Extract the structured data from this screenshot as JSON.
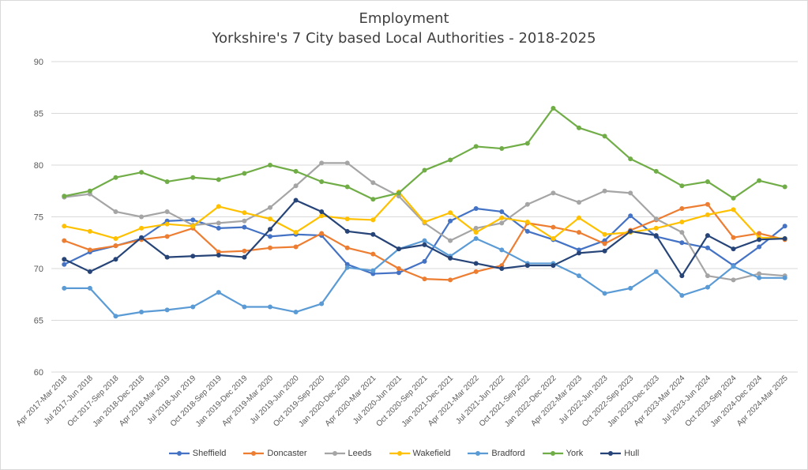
{
  "chart_data": {
    "type": "line",
    "title": "Employment",
    "subtitle": "Yorkshire's 7 City based Local Authorities - 2018-2025",
    "xlabel": "",
    "ylabel": "",
    "ylim": [
      60,
      90
    ],
    "yticks": [
      "60",
      "65",
      "70",
      "75",
      "80",
      "85",
      "90"
    ],
    "grid": true,
    "legend": "bottom",
    "categories": [
      "Apr 2017-Mar 2018",
      "Jul 2017-Jun 2018",
      "Oct 2017-Sep 2018",
      "Jan 2018-Dec 2018",
      "Apr 2018-Mar 2019",
      "Jul 2018-Jun 2019",
      "Oct 2018-Sep 2019",
      "Jan 2019-Dec 2019",
      "Apr 2019-Mar 2020",
      "Jul 2019-Jun 2020",
      "Oct 2019-Sep 2020",
      "Jan 2020-Dec 2020",
      "Apr 2020-Mar 2021",
      "Jul 2020-Jun 2021",
      "Oct 2020-Sep 2021",
      "Jan 2021-Dec 2021",
      "Apr 2021-Mar 2022",
      "Jul 2021-Jun 2022",
      "Oct 2021-Sep 2022",
      "Jan 2022-Dec 2022",
      "Apr 2022-Mar 2023",
      "Jul 2022-Jun 2023",
      "Oct 2022-Sep 2023",
      "Jan 2023-Dec 2023",
      "Apr 2023-Mar 2024",
      "Jul 2023-Jun 2024",
      "Oct 2023-Sep 2024",
      "Jan 2024-Dec 2024",
      "Apr 2024-Mar 2025"
    ],
    "series": [
      {
        "name": "Sheffield",
        "color": "#4472C4",
        "values": [
          70.4,
          71.6,
          72.2,
          72.9,
          74.6,
          74.7,
          73.9,
          74.0,
          73.1,
          73.3,
          73.2,
          70.4,
          69.5,
          69.6,
          70.7,
          74.6,
          75.8,
          75.5,
          73.6,
          72.8,
          71.8,
          72.7,
          75.1,
          73.1,
          72.5,
          72.0,
          70.3,
          72.1,
          74.1
        ]
      },
      {
        "name": "Doncaster",
        "color": "#ED7D31",
        "values": [
          72.7,
          71.8,
          72.2,
          72.8,
          73.1,
          73.9,
          71.6,
          71.7,
          72.0,
          72.1,
          73.4,
          72.0,
          71.4,
          70.0,
          69.0,
          68.9,
          69.7,
          70.3,
          74.4,
          74.0,
          73.5,
          72.4,
          73.7,
          74.7,
          75.8,
          76.2,
          73.0,
          73.4,
          72.8
        ]
      },
      {
        "name": "Leeds",
        "color": "#A5A5A5",
        "values": [
          76.9,
          77.2,
          75.5,
          75.0,
          75.5,
          74.2,
          74.4,
          74.6,
          75.9,
          78.0,
          80.2,
          80.2,
          78.3,
          77.0,
          74.4,
          72.7,
          73.9,
          74.4,
          76.2,
          77.3,
          76.4,
          77.5,
          77.3,
          74.8,
          73.5,
          69.3,
          68.9,
          69.5,
          69.3
        ]
      },
      {
        "name": "Wakefield",
        "color": "#FFC000",
        "values": [
          74.1,
          73.6,
          72.9,
          73.9,
          74.3,
          74.1,
          76.0,
          75.4,
          74.8,
          73.5,
          75.1,
          74.8,
          74.7,
          77.4,
          74.5,
          75.4,
          73.5,
          74.9,
          74.5,
          72.9,
          74.9,
          73.3,
          73.5,
          73.9,
          74.5,
          75.2,
          75.7,
          73.0,
          72.9
        ]
      },
      {
        "name": "Bradford",
        "color": "#5B9BD5",
        "values": [
          68.1,
          68.1,
          65.4,
          65.8,
          66.0,
          66.3,
          67.7,
          66.3,
          66.3,
          65.8,
          66.6,
          70.1,
          69.8,
          71.9,
          72.7,
          71.2,
          72.9,
          71.8,
          70.5,
          70.5,
          69.3,
          67.6,
          68.1,
          69.7,
          67.4,
          68.2,
          70.2,
          69.1,
          69.1
        ]
      },
      {
        "name": "York",
        "color": "#70AD47",
        "values": [
          77.0,
          77.5,
          78.8,
          79.3,
          78.4,
          78.8,
          78.6,
          79.2,
          80.0,
          79.4,
          78.4,
          77.9,
          76.7,
          77.3,
          79.5,
          80.5,
          81.8,
          81.6,
          82.1,
          85.5,
          83.6,
          82.8,
          80.6,
          79.4,
          78.0,
          78.4,
          76.8,
          78.5,
          77.9
        ]
      },
      {
        "name": "Hull",
        "color": "#264478",
        "values": [
          70.9,
          69.7,
          70.9,
          73.0,
          71.1,
          71.2,
          71.3,
          71.1,
          73.8,
          76.6,
          75.5,
          73.6,
          73.3,
          71.9,
          72.3,
          71.0,
          70.5,
          70.0,
          70.3,
          70.3,
          71.5,
          71.7,
          73.6,
          73.2,
          69.3,
          73.2,
          71.9,
          72.8,
          72.9
        ]
      }
    ]
  }
}
